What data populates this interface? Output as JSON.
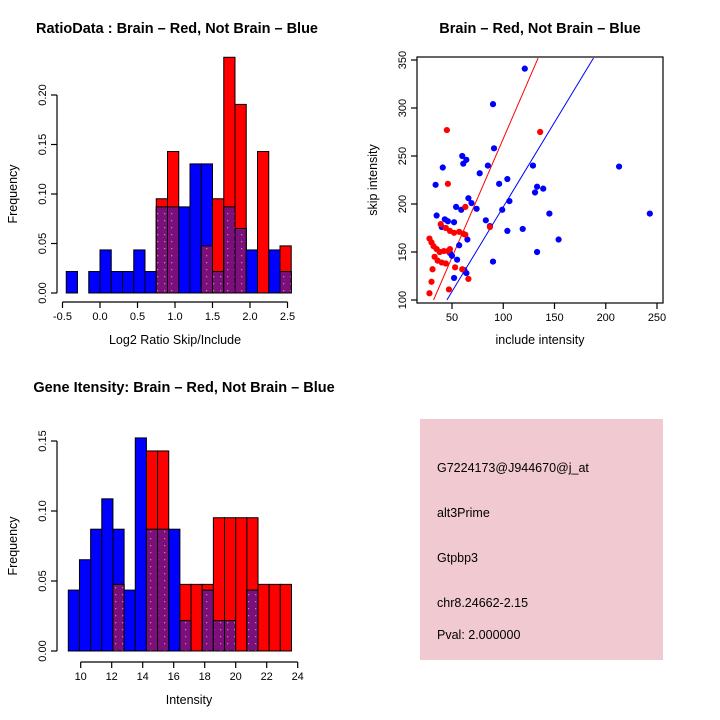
{
  "colors": {
    "brain_red": "#ff0000",
    "not_brain_blue": "#0000ff",
    "overlap_purple": "#7b0f7b",
    "overlap_dot": "#db7093",
    "info_bg_pink": "#f1c9d1",
    "pval_red": "#9e1f2e",
    "axis_black": "#000000"
  },
  "chart_data": [
    {
      "id": "ratio-histogram",
      "type": "bar",
      "subtype": "overlaid-histogram",
      "title": "RatioData : Brain – Red, Not Brain – Blue",
      "xlabel": "Log2 Ratio Skip/Include",
      "ylabel": "Frequency",
      "bin_start": -0.45,
      "bin_width": 0.15,
      "xlim": [
        -0.5,
        2.55
      ],
      "ylim": [
        0,
        0.24
      ],
      "grid": false,
      "x_ticks": [
        -0.5,
        0.0,
        0.5,
        1.0,
        1.5,
        2.0,
        2.5
      ],
      "x_tick_labels": [
        "-0.5",
        "0.0",
        "0.5",
        "1.0",
        "1.5",
        "2.0",
        "2.5"
      ],
      "y_ticks": [
        0.0,
        0.05,
        0.1,
        0.15,
        0.2
      ],
      "y_tick_labels": [
        "0.00",
        "0.05",
        "0.10",
        "0.15",
        "0.20"
      ],
      "series": [
        {
          "name": "Not Brain",
          "color": "#0000ff",
          "freq": [
            0.0217,
            0,
            0.0217,
            0.0435,
            0.0217,
            0.0217,
            0.0435,
            0.0217,
            0.087,
            0.087,
            0.087,
            0.1304,
            0.1304,
            0.0217,
            0.087,
            0.0652,
            0.0435,
            0,
            0.0435,
            0.0217
          ]
        },
        {
          "name": "Brain",
          "color": "#ff0000",
          "freq": [
            0,
            0,
            0,
            0,
            0,
            0,
            0,
            0,
            0.0952,
            0.1429,
            0,
            0,
            0.0476,
            0.0952,
            0.2381,
            0.1905,
            0,
            0.1429,
            0,
            0.0476
          ]
        }
      ]
    },
    {
      "id": "intensity-scatter",
      "type": "scatter",
      "title": "Brain – Red, Not Brain – Blue",
      "xlabel": "include intensity",
      "ylabel": "skip intensity",
      "xlim": [
        16,
        255
      ],
      "ylim": [
        95,
        355
      ],
      "grid": false,
      "x_ticks": [
        50,
        100,
        150,
        200,
        250
      ],
      "x_tick_labels": [
        "50",
        "100",
        "150",
        "200",
        "250"
      ],
      "y_ticks": [
        100,
        150,
        200,
        250,
        300,
        350
      ],
      "y_tick_labels": [
        "100",
        "150",
        "200",
        "250",
        "300",
        "350"
      ],
      "series": [
        {
          "name": "Not Brain",
          "color": "#0000ff",
          "points": [
            [
              121,
              341
            ],
            [
              90,
              304
            ],
            [
              91,
              258
            ],
            [
              60,
              250
            ],
            [
              64,
              246
            ],
            [
              61,
              242
            ],
            [
              41,
              238
            ],
            [
              85,
              240
            ],
            [
              129,
              240
            ],
            [
              77,
              232
            ],
            [
              104,
              226
            ],
            [
              96,
              221
            ],
            [
              34,
              220
            ],
            [
              133,
              218
            ],
            [
              139,
              216
            ],
            [
              213,
              239
            ],
            [
              243,
              190
            ],
            [
              145,
              190
            ],
            [
              131,
              212
            ],
            [
              106,
              203
            ],
            [
              99,
              194
            ],
            [
              66,
              206
            ],
            [
              69,
              201
            ],
            [
              54,
              197
            ],
            [
              59,
              194
            ],
            [
              74,
              195
            ],
            [
              35,
              188
            ],
            [
              43,
              184
            ],
            [
              46,
              182
            ],
            [
              52,
              181
            ],
            [
              83,
              183
            ],
            [
              87,
              177
            ],
            [
              119,
              174
            ],
            [
              104,
              172
            ],
            [
              154,
              163
            ],
            [
              133,
              150
            ],
            [
              90,
              140
            ],
            [
              40,
              176
            ],
            [
              65,
              163
            ],
            [
              57,
              157
            ],
            [
              48,
              149
            ],
            [
              50,
              146
            ],
            [
              55,
              142
            ],
            [
              62,
              131
            ],
            [
              64,
              128
            ],
            [
              52,
              123
            ]
          ]
        },
        {
          "name": "Brain",
          "color": "#ff0000",
          "points": [
            [
              45,
              277
            ],
            [
              136,
              275
            ],
            [
              46,
              221
            ],
            [
              63,
              197
            ],
            [
              87,
              176
            ],
            [
              39,
              179
            ],
            [
              44,
              175
            ],
            [
              48,
              172
            ],
            [
              52,
              170
            ],
            [
              57,
              171
            ],
            [
              61,
              169
            ],
            [
              63,
              168
            ],
            [
              28,
              164
            ],
            [
              30,
              160
            ],
            [
              32,
              156
            ],
            [
              35,
              153
            ],
            [
              38,
              150
            ],
            [
              42,
              151
            ],
            [
              46,
              151
            ],
            [
              48,
              153
            ],
            [
              33,
              145
            ],
            [
              36,
              141
            ],
            [
              40,
              139
            ],
            [
              44,
              138
            ],
            [
              31,
              132
            ],
            [
              53,
              134
            ],
            [
              60,
              132
            ],
            [
              66,
              122
            ],
            [
              30,
              119
            ],
            [
              47,
              111
            ],
            [
              28,
              107
            ]
          ]
        }
      ],
      "lines": [
        {
          "name": "brain-fit-line",
          "color": "#ff0000",
          "x1": 32,
          "y1": 100,
          "x2": 134,
          "y2": 352
        },
        {
          "name": "not-brain-fit-line",
          "color": "#0000ff",
          "x1": 45,
          "y1": 100,
          "x2": 188,
          "y2": 352
        }
      ]
    },
    {
      "id": "gene-intensity-histogram",
      "type": "bar",
      "subtype": "overlaid-histogram",
      "title": "Gene Itensity: Brain – Red, Not Brain – Blue",
      "xlabel": "Intensity",
      "ylabel": "Frequency",
      "bin_start": 9.2,
      "bin_width": 0.72,
      "xlim": [
        9,
        24
      ],
      "ylim": [
        0,
        0.16
      ],
      "grid": false,
      "x_ticks": [
        10,
        12,
        14,
        16,
        18,
        20,
        22,
        24
      ],
      "x_tick_labels": [
        "10",
        "12",
        "14",
        "16",
        "18",
        "20",
        "22",
        "24"
      ],
      "y_ticks": [
        0.0,
        0.05,
        0.1,
        0.15
      ],
      "y_tick_labels": [
        "0.00",
        "0.05",
        "0.10",
        "0.15"
      ],
      "series": [
        {
          "name": "Not Brain",
          "color": "#0000ff",
          "freq": [
            0.0435,
            0.0652,
            0.087,
            0.1087,
            0.087,
            0.0435,
            0.1522,
            0.087,
            0.087,
            0.087,
            0.0217,
            0,
            0.0435,
            0.0217,
            0.0217,
            0,
            0.0435,
            0,
            0,
            0
          ]
        },
        {
          "name": "Brain",
          "color": "#ff0000",
          "freq": [
            0,
            0,
            0,
            0,
            0.0476,
            0,
            0,
            0.1429,
            0.1429,
            0,
            0.0476,
            0.0476,
            0.0476,
            0.0952,
            0.0952,
            0.0952,
            0.0952,
            0.0476,
            0.0476,
            0.0476
          ]
        }
      ]
    },
    {
      "id": "info-panel",
      "type": "table",
      "background": "#f1c9d1",
      "lines": [
        {
          "name": "probe-id",
          "text": "G7224173@J944670@j_at",
          "color": "#000000"
        },
        {
          "name": "splice-type",
          "text": "alt3Prime",
          "color": "#000000"
        },
        {
          "name": "gene-symbol",
          "text": "Gtpbp3",
          "color": "#000000"
        },
        {
          "name": "locus",
          "text": "chr8.24662-2.15",
          "color": "#000000"
        },
        {
          "name": "pval",
          "text": "Pval: 2.000000",
          "color": "#9e1f2e"
        }
      ]
    }
  ]
}
